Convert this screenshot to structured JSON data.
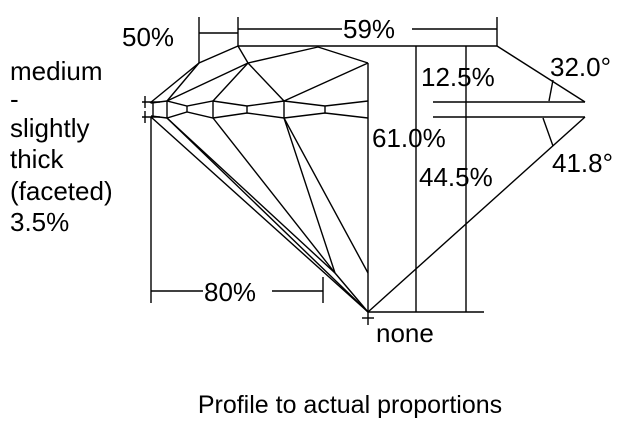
{
  "diagram": {
    "table_diameter": "59%",
    "star_length": "50%",
    "lower_half_length": "80%",
    "crown_height": "12.5%",
    "crown_angle": "32.0°",
    "total_depth": "61.0%",
    "pavilion_depth": "44.5%",
    "pavilion_angle": "41.8°",
    "culet": "none",
    "girdle_lines": [
      "medium",
      "-",
      "slightly",
      "thick",
      "(faceted)",
      "3.5%"
    ],
    "caption": "Profile to actual proportions"
  }
}
